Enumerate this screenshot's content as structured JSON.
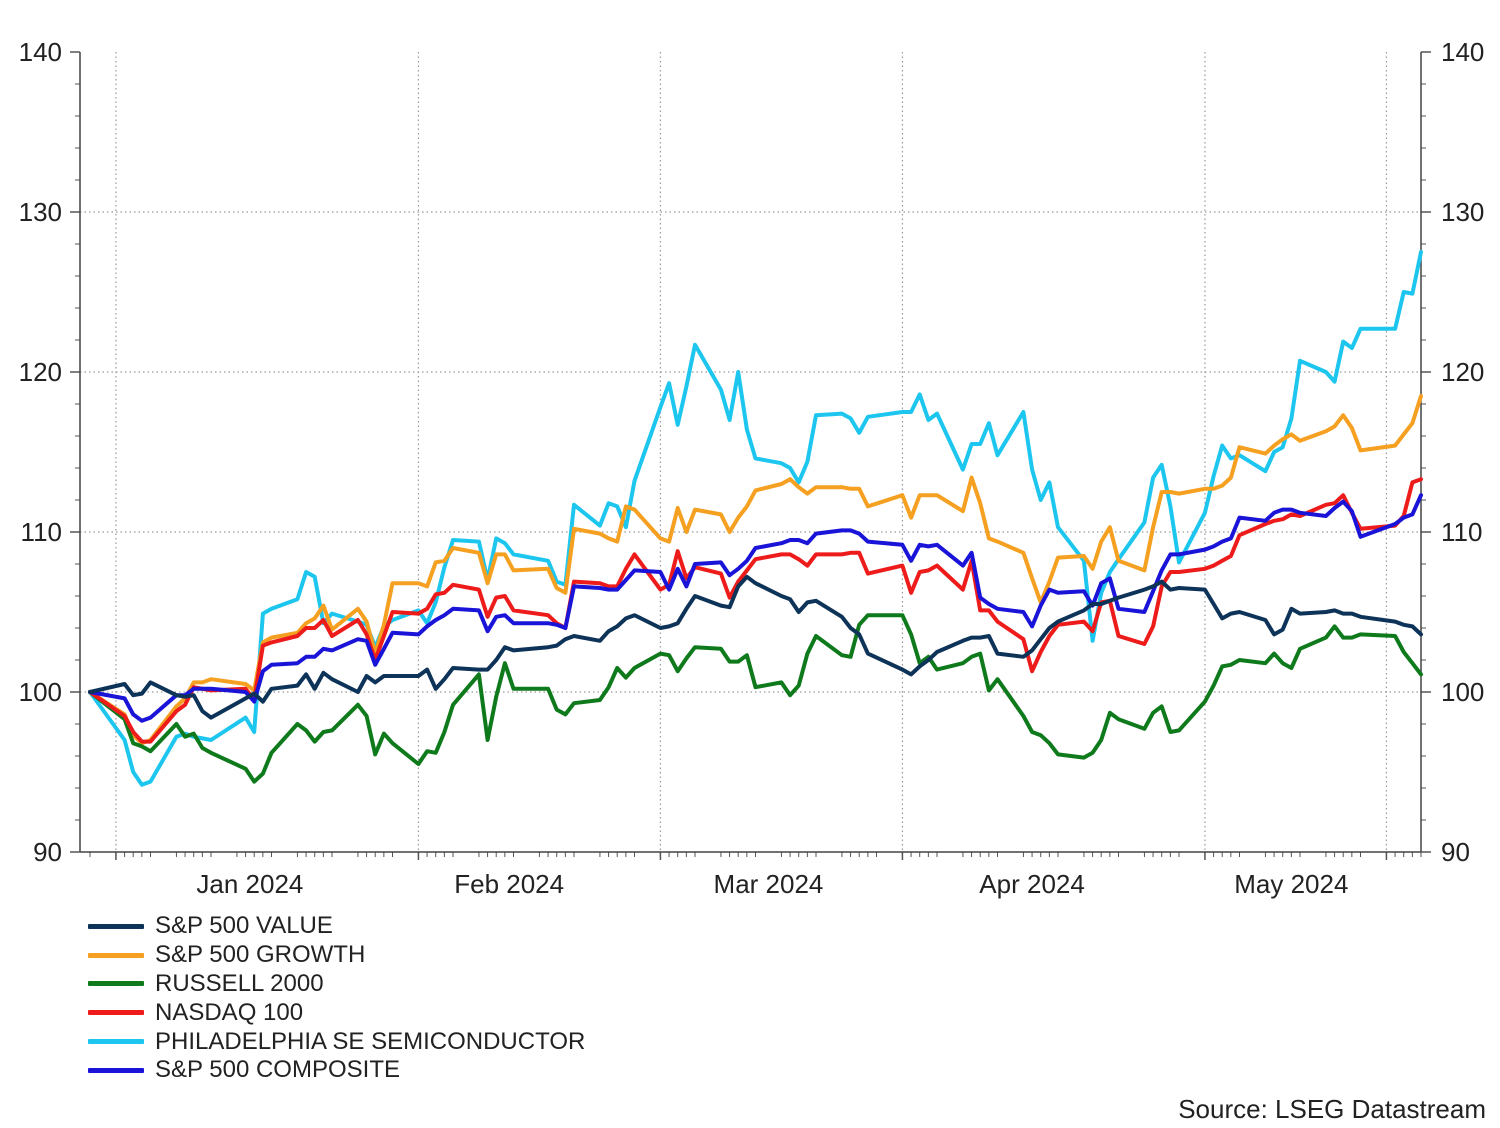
{
  "chart_data": {
    "type": "line",
    "source": "Source: LSEG Datastream",
    "ylim": [
      90,
      140
    ],
    "yticks": [
      90,
      100,
      110,
      120,
      130,
      140
    ],
    "xlim": [
      "2023-12-29",
      "2024-05-31"
    ],
    "month_ticks": [
      {
        "date": "2024-01-01",
        "label": "Jan 2024"
      },
      {
        "date": "2024-02-01",
        "label": "Feb 2024"
      },
      {
        "date": "2024-03-01",
        "label": "Mar 2024"
      },
      {
        "date": "2024-04-01",
        "label": "Apr 2024"
      },
      {
        "date": "2024-05-01",
        "label": "May 2024"
      }
    ],
    "grid": true,
    "legend_position": "bottom-left",
    "x": [
      "2023-12-29",
      "2024-01-02",
      "2024-01-03",
      "2024-01-04",
      "2024-01-05",
      "2024-01-08",
      "2024-01-09",
      "2024-01-10",
      "2024-01-11",
      "2024-01-12",
      "2024-01-16",
      "2024-01-17",
      "2024-01-18",
      "2024-01-19",
      "2024-01-22",
      "2024-01-23",
      "2024-01-24",
      "2024-01-25",
      "2024-01-26",
      "2024-01-29",
      "2024-01-30",
      "2024-01-31",
      "2024-02-01",
      "2024-02-02",
      "2024-02-05",
      "2024-02-06",
      "2024-02-07",
      "2024-02-08",
      "2024-02-09",
      "2024-02-12",
      "2024-02-13",
      "2024-02-14",
      "2024-02-15",
      "2024-02-16",
      "2024-02-20",
      "2024-02-21",
      "2024-02-22",
      "2024-02-23",
      "2024-02-26",
      "2024-02-27",
      "2024-02-28",
      "2024-02-29",
      "2024-03-01",
      "2024-03-04",
      "2024-03-05",
      "2024-03-06",
      "2024-03-07",
      "2024-03-08",
      "2024-03-11",
      "2024-03-12",
      "2024-03-13",
      "2024-03-14",
      "2024-03-15",
      "2024-03-18",
      "2024-03-19",
      "2024-03-20",
      "2024-03-21",
      "2024-03-22",
      "2024-03-25",
      "2024-03-26",
      "2024-03-27",
      "2024-03-28",
      "2024-04-01",
      "2024-04-02",
      "2024-04-03",
      "2024-04-04",
      "2024-04-05",
      "2024-04-08",
      "2024-04-09",
      "2024-04-10",
      "2024-04-11",
      "2024-04-12",
      "2024-04-15",
      "2024-04-16",
      "2024-04-17",
      "2024-04-18",
      "2024-04-19",
      "2024-04-22",
      "2024-04-23",
      "2024-04-24",
      "2024-04-25",
      "2024-04-26",
      "2024-04-29",
      "2024-04-30",
      "2024-05-01",
      "2024-05-02",
      "2024-05-03",
      "2024-05-06",
      "2024-05-07",
      "2024-05-08",
      "2024-05-09",
      "2024-05-10",
      "2024-05-13",
      "2024-05-14",
      "2024-05-15",
      "2024-05-16",
      "2024-05-17",
      "2024-05-20",
      "2024-05-21",
      "2024-05-22",
      "2024-05-23",
      "2024-05-24",
      "2024-05-28",
      "2024-05-29",
      "2024-05-30",
      "2024-05-31"
    ],
    "series": [
      {
        "name": "S&P 500 VALUE",
        "color": "#0d3358",
        "values": [
          100,
          100.5,
          99.8,
          99.9,
          100.6,
          99.8,
          99.7,
          99.8,
          98.8,
          98.4,
          99.6,
          99.9,
          99.4,
          100.2,
          100.4,
          101.1,
          100.2,
          101.2,
          100.8,
          100.0,
          101.0,
          100.6,
          101.0,
          101.0,
          101.0,
          101.4,
          100.2,
          100.8,
          101.5,
          101.4,
          101.4,
          102.0,
          102.8,
          102.6,
          102.8,
          102.9,
          103.3,
          103.5,
          103.2,
          103.8,
          104.1,
          104.6,
          104.8,
          104.0,
          104.1,
          104.3,
          105.2,
          106.0,
          105.4,
          105.3,
          106.6,
          107.2,
          106.8,
          106.0,
          105.8,
          105.0,
          105.6,
          105.7,
          104.7,
          104.0,
          103.6,
          102.4,
          101.4,
          101.1,
          101.6,
          102.0,
          102.5,
          103.2,
          103.4,
          103.4,
          103.5,
          102.4,
          102.2,
          102.6,
          103.3,
          104.0,
          104.4,
          105.1,
          105.5,
          105.5,
          105.7,
          105.9,
          106.4,
          106.6,
          106.9,
          106.4,
          106.5,
          106.4,
          105.5,
          104.6,
          104.9,
          105.0,
          104.5,
          103.6,
          103.9,
          105.2,
          104.9,
          105.0,
          105.1,
          104.9,
          104.9,
          104.7,
          104.4,
          104.2,
          104.1,
          103.6
        ]
      },
      {
        "name": "S&P 500 GROWTH",
        "color": "#f5a020",
        "values": [
          100,
          98.6,
          97.3,
          96.8,
          97.0,
          99.1,
          99.6,
          100.6,
          100.6,
          100.8,
          100.5,
          100.1,
          103.1,
          103.4,
          103.7,
          104.3,
          104.6,
          105.4,
          103.9,
          105.2,
          104.4,
          102.4,
          104.2,
          106.8,
          106.8,
          106.6,
          108.1,
          108.2,
          109.0,
          108.7,
          106.8,
          108.6,
          108.6,
          107.6,
          107.7,
          106.5,
          106.2,
          110.2,
          109.9,
          109.6,
          109.4,
          111.6,
          111.4,
          109.6,
          109.4,
          111.5,
          110.0,
          111.4,
          111.1,
          110.0,
          110.9,
          111.6,
          112.6,
          113.0,
          113.3,
          112.8,
          112.4,
          112.8,
          112.8,
          112.7,
          112.7,
          111.6,
          112.3,
          110.9,
          112.3,
          112.3,
          112.3,
          111.3,
          113.4,
          111.8,
          109.6,
          109.4,
          108.7,
          107.1,
          105.6,
          106.9,
          108.4,
          108.5,
          107.7,
          109.4,
          110.3,
          108.2,
          107.6,
          110.3,
          112.5,
          112.5,
          112.4,
          112.7,
          112.7,
          112.9,
          113.4,
          115.3,
          114.9,
          115.4,
          115.8,
          116.1,
          115.7,
          116.3,
          116.6,
          117.3,
          116.5,
          115.1,
          115.4,
          116.1,
          116.8,
          118.5
        ]
      },
      {
        "name": "RUSSELL 2000",
        "color": "#0e7a1c",
        "values": [
          100,
          98.3,
          96.8,
          96.6,
          96.3,
          98.0,
          97.2,
          97.4,
          96.5,
          96.2,
          95.2,
          94.4,
          94.9,
          96.2,
          98.0,
          97.6,
          96.9,
          97.5,
          97.6,
          99.2,
          98.5,
          96.1,
          97.4,
          96.8,
          95.5,
          96.3,
          96.2,
          97.5,
          99.2,
          101.1,
          97.0,
          99.7,
          101.8,
          100.2,
          100.2,
          98.9,
          98.6,
          99.3,
          99.5,
          100.3,
          101.5,
          100.9,
          101.5,
          102.4,
          102.3,
          101.3,
          102.1,
          102.8,
          102.7,
          101.9,
          101.9,
          102.3,
          100.3,
          100.6,
          99.8,
          100.4,
          102.4,
          103.5,
          102.3,
          102.2,
          104.2,
          104.8,
          104.8,
          103.6,
          101.8,
          102.2,
          101.4,
          101.8,
          102.2,
          102.4,
          100.1,
          100.8,
          98.5,
          97.5,
          97.3,
          96.8,
          96.1,
          95.9,
          96.2,
          97.0,
          98.7,
          98.3,
          97.7,
          98.7,
          99.1,
          97.5,
          97.6,
          99.4,
          100.4,
          101.6,
          101.7,
          102.0,
          101.8,
          102.4,
          101.8,
          101.5,
          102.7,
          103.4,
          104.1,
          103.4,
          103.4,
          103.6,
          103.5,
          102.5,
          101.8,
          101.1
        ]
      },
      {
        "name": "NASDAQ 100",
        "color": "#ee1b1b",
        "values": [
          100,
          98.5,
          97.5,
          96.9,
          96.9,
          98.8,
          99.2,
          100.3,
          100.2,
          100.1,
          100.2,
          99.5,
          102.9,
          103.1,
          103.5,
          104.0,
          104.0,
          104.5,
          103.5,
          104.5,
          103.6,
          102.0,
          103.5,
          105.0,
          104.9,
          105.2,
          106.1,
          106.2,
          106.7,
          106.4,
          104.7,
          105.9,
          106.0,
          105.1,
          104.8,
          104.3,
          104.0,
          106.9,
          106.8,
          106.6,
          106.6,
          107.7,
          108.6,
          106.4,
          106.7,
          108.8,
          107.1,
          107.8,
          107.4,
          105.9,
          106.9,
          107.6,
          108.3,
          108.6,
          108.6,
          108.3,
          107.9,
          108.6,
          108.6,
          108.7,
          108.7,
          107.4,
          107.9,
          106.2,
          107.5,
          107.6,
          107.9,
          106.4,
          108.2,
          105.1,
          105.1,
          104.4,
          103.3,
          101.3,
          102.5,
          103.5,
          104.2,
          104.4,
          103.8,
          105.6,
          105.7,
          103.5,
          103.0,
          104.1,
          106.6,
          107.5,
          107.5,
          107.7,
          107.9,
          108.2,
          108.5,
          109.8,
          110.5,
          110.7,
          110.8,
          111.1,
          111.0,
          111.7,
          111.8,
          112.3,
          111.2,
          110.2,
          110.4,
          111.0,
          113.1,
          113.3
        ]
      },
      {
        "name": "PHILADELPHIA SE SEMICONDUCTOR",
        "color": "#1dc6ee",
        "values": [
          100,
          97.0,
          95.0,
          94.2,
          94.4,
          97.2,
          97.4,
          97.2,
          97.1,
          97.0,
          98.4,
          97.5,
          104.9,
          105.2,
          105.8,
          107.5,
          107.2,
          104.3,
          104.9,
          104.4,
          104.2,
          102.8,
          104.1,
          104.5,
          105.1,
          104.3,
          105.6,
          107.8,
          109.5,
          109.4,
          107.0,
          109.6,
          109.3,
          108.6,
          108.2,
          106.9,
          106.7,
          111.7,
          110.4,
          111.8,
          111.6,
          110.3,
          113.2,
          117.8,
          119.3,
          116.7,
          119.1,
          121.7,
          118.9,
          117.0,
          120.0,
          116.4,
          114.6,
          114.3,
          114.0,
          113.1,
          114.4,
          117.3,
          117.4,
          117.1,
          116.2,
          117.2,
          117.5,
          117.5,
          118.6,
          117.0,
          117.4,
          113.9,
          115.5,
          115.5,
          116.8,
          114.8,
          117.5,
          113.9,
          112.0,
          113.1,
          110.3,
          108.2,
          103.2,
          106.2,
          107.5,
          108.3,
          110.6,
          113.4,
          114.2,
          111.6,
          108.1,
          111.2,
          113.5,
          115.4,
          114.6,
          114.8,
          113.8,
          115.0,
          115.3,
          117.1,
          120.7,
          120.0,
          119.4,
          121.9,
          121.5,
          122.7,
          122.7,
          125.0,
          124.9,
          127.5
        ]
      },
      {
        "name": "S&P 500 COMPOSITE",
        "color": "#1a13d8",
        "values": [
          100,
          99.6,
          98.6,
          98.2,
          98.4,
          99.8,
          99.8,
          100.2,
          100.2,
          100.2,
          100.0,
          99.4,
          101.3,
          101.7,
          101.8,
          102.2,
          102.2,
          102.7,
          102.6,
          103.3,
          103.2,
          101.7,
          102.7,
          103.7,
          103.6,
          104.1,
          104.5,
          104.8,
          105.2,
          105.1,
          103.8,
          104.7,
          104.8,
          104.3,
          104.3,
          104.2,
          104.0,
          106.6,
          106.5,
          106.4,
          106.4,
          107.0,
          107.6,
          107.5,
          106.4,
          107.7,
          106.6,
          108.0,
          108.1,
          107.3,
          107.7,
          108.2,
          109.0,
          109.3,
          109.5,
          109.5,
          109.3,
          109.9,
          110.1,
          110.1,
          109.9,
          109.4,
          109.2,
          108.2,
          109.2,
          109.1,
          109.2,
          107.9,
          108.7,
          105.9,
          105.5,
          105.2,
          105.0,
          104.1,
          105.4,
          106.4,
          106.2,
          106.3,
          105.4,
          106.8,
          107.1,
          105.2,
          105.0,
          106.3,
          107.6,
          108.6,
          108.6,
          108.9,
          109.1,
          109.4,
          109.6,
          110.9,
          110.7,
          111.2,
          111.4,
          111.4,
          111.2,
          111.0,
          111.5,
          111.9,
          111.3,
          109.7,
          110.5,
          110.9,
          111.1,
          112.3
        ]
      }
    ]
  }
}
